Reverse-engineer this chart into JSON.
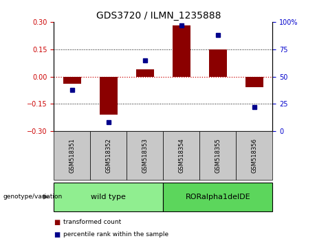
{
  "title": "GDS3720 / ILMN_1235888",
  "samples": [
    "GSM518351",
    "GSM518352",
    "GSM518353",
    "GSM518354",
    "GSM518355",
    "GSM518356"
  ],
  "transformed_count": [
    -0.04,
    -0.21,
    0.04,
    0.28,
    0.15,
    -0.06
  ],
  "percentile_rank": [
    38,
    8,
    65,
    97,
    88,
    22
  ],
  "ylim_left": [
    -0.3,
    0.3
  ],
  "ylim_right": [
    0,
    100
  ],
  "yticks_left": [
    -0.3,
    -0.15,
    0,
    0.15,
    0.3
  ],
  "yticks_right": [
    0,
    25,
    50,
    75,
    100
  ],
  "ytick_labels_right": [
    "0",
    "25",
    "50",
    "75",
    "100%"
  ],
  "bar_color": "#8B0000",
  "dot_color": "#00008B",
  "zero_line_color": "#CC0000",
  "group_labels": [
    "wild type",
    "RORalpha1delDE"
  ],
  "group_ranges": [
    [
      0,
      3
    ],
    [
      3,
      6
    ]
  ],
  "group_colors_light": [
    "#90EE90",
    "#5CD65C"
  ],
  "genotype_label": "genotype/variation",
  "legend_bar_label": "transformed count",
  "legend_dot_label": "percentile rank within the sample",
  "bar_width": 0.5,
  "figsize": [
    4.61,
    3.54
  ],
  "dpi": 100
}
